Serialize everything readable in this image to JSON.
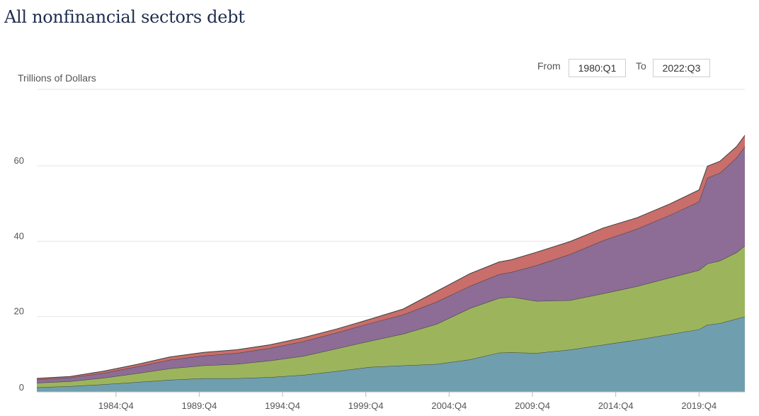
{
  "page": {
    "title": "All nonfinancial sectors debt",
    "range": {
      "from_label": "From",
      "from_value": "1980:Q1",
      "to_label": "To",
      "to_value": "2022:Q3"
    }
  },
  "chart_data": {
    "type": "area",
    "stacked": true,
    "title": "All nonfinancial sectors debt",
    "ylabel": "Trillions of Dollars",
    "ylim": [
      0,
      75
    ],
    "yticks": [
      0,
      20,
      40,
      60
    ],
    "x_range": [
      "1980:Q1",
      "2022:Q3"
    ],
    "xtick_labels": [
      "1984:Q4",
      "1989:Q4",
      "1994:Q4",
      "1999:Q4",
      "2004:Q4",
      "2009:Q4",
      "2014:Q4",
      "2019:Q4"
    ],
    "x": [
      1980.0,
      1982.0,
      1984.0,
      1986.0,
      1988.0,
      1990.0,
      1992.0,
      1994.0,
      1996.0,
      1998.0,
      2000.0,
      2002.0,
      2004.0,
      2006.0,
      2007.75,
      2008.5,
      2010.0,
      2012.0,
      2014.0,
      2016.0,
      2018.0,
      2019.75,
      2020.25,
      2021.0,
      2022.0,
      2022.5
    ],
    "series": [
      {
        "color": "#6f9fae",
        "values": [
          1.2,
          1.5,
          2.0,
          2.6,
          3.2,
          3.6,
          3.6,
          3.9,
          4.5,
          5.5,
          6.6,
          7.0,
          7.4,
          8.6,
          10.4,
          10.5,
          10.3,
          11.2,
          12.5,
          13.8,
          15.3,
          16.6,
          17.8,
          18.2,
          19.4,
          20.0
        ]
      },
      {
        "color": "#9cb55d",
        "values": [
          1.2,
          1.3,
          1.7,
          2.3,
          3.0,
          3.4,
          3.8,
          4.4,
          5.0,
          6.0,
          6.9,
          8.4,
          10.6,
          13.6,
          14.5,
          14.7,
          13.8,
          13.1,
          13.6,
          14.2,
          15.0,
          15.7,
          16.2,
          16.6,
          17.6,
          18.8
        ]
      },
      {
        "color": "#8d6c96",
        "values": [
          0.9,
          1.0,
          1.3,
          1.8,
          2.3,
          2.6,
          2.9,
          3.3,
          3.9,
          4.2,
          4.7,
          5.1,
          5.9,
          5.9,
          6.3,
          6.6,
          9.5,
          12.2,
          14.1,
          15.2,
          16.6,
          18.2,
          22.8,
          23.3,
          25.1,
          26.3
        ]
      },
      {
        "color": "#c96e6a",
        "values": [
          0.3,
          0.3,
          0.5,
          0.6,
          0.8,
          0.9,
          0.9,
          0.9,
          1.0,
          1.0,
          1.1,
          1.5,
          2.8,
          3.3,
          3.3,
          3.3,
          3.5,
          3.4,
          3.3,
          3.0,
          3.0,
          3.1,
          3.1,
          3.1,
          3.0,
          3.0
        ]
      }
    ],
    "grid": true,
    "legend": "none"
  }
}
